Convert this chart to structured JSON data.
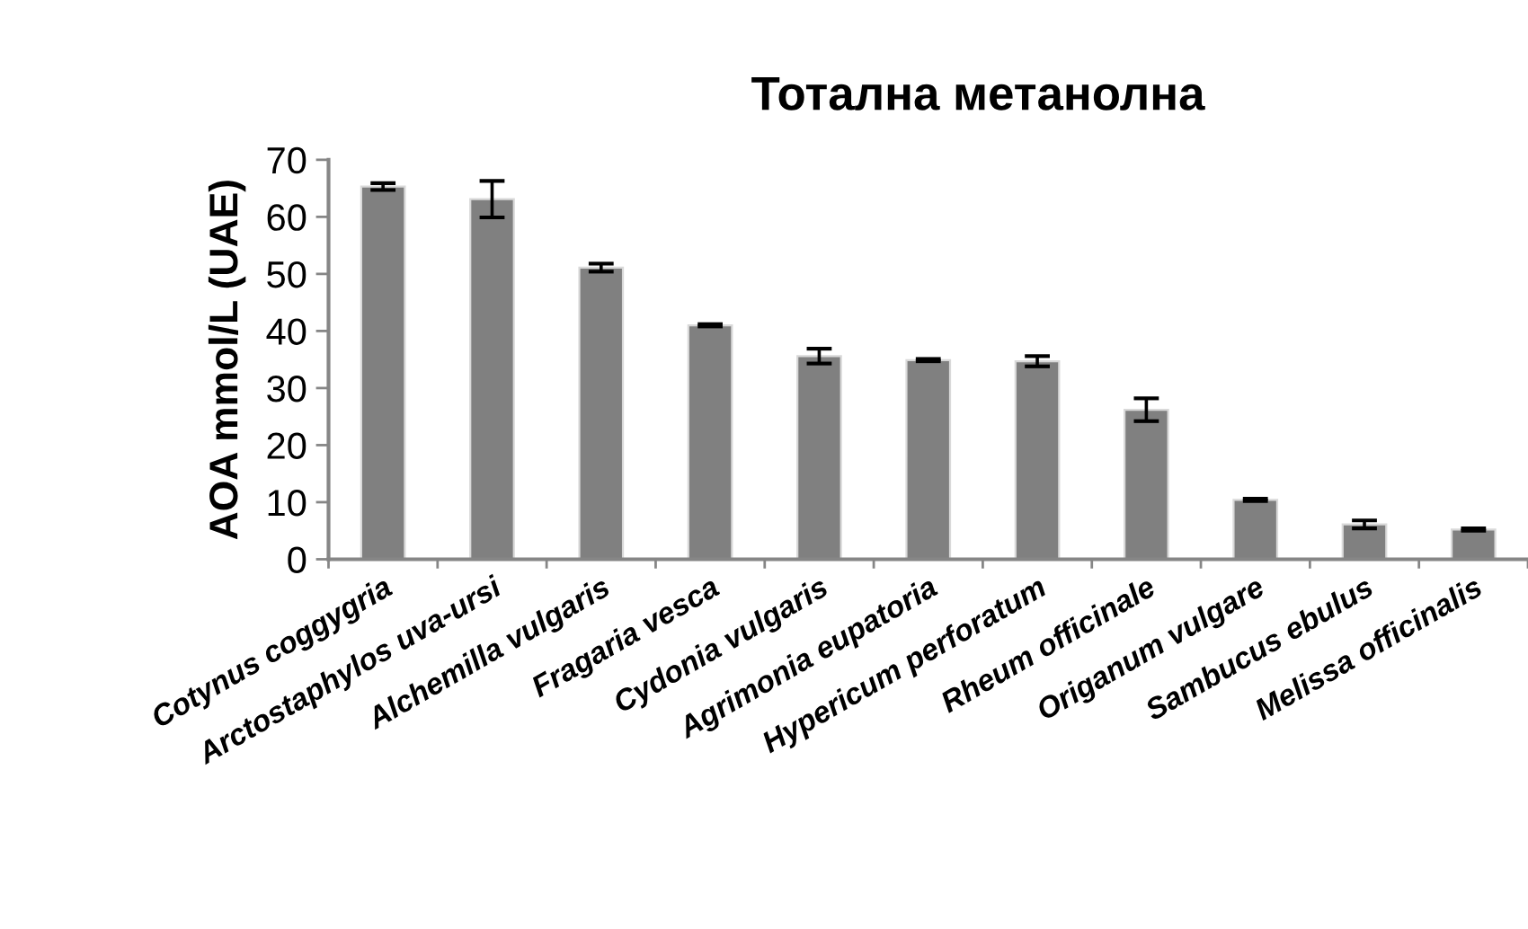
{
  "chart_data": {
    "type": "bar",
    "title": "Тотална метанолна",
    "ylabel": "AOA mmol/L (UAE)",
    "categories": [
      "Cotynus coggygria",
      "Arctostaphylos uva-ursi",
      "Alchemilla vulgaris",
      "Fragaria vesca",
      "Cydonia vulgaris",
      "Agrimonia eupatoria",
      "Hypericum perforatum",
      "Rheum officinale",
      "Origanum vulgare",
      "Sambucus ebulus",
      "Melissa officinalis"
    ],
    "values": [
      65.3,
      63.1,
      51.1,
      41.0,
      35.6,
      34.9,
      34.7,
      26.2,
      10.4,
      6.1,
      5.2
    ],
    "errors": [
      0.6,
      3.2,
      0.7,
      0.2,
      1.3,
      0.2,
      0.9,
      2.0,
      0.2,
      0.7,
      0.2
    ],
    "color": "#808080",
    "ylim": [
      0,
      70
    ],
    "yticks": [
      0,
      10,
      20,
      30,
      40,
      50,
      60,
      70
    ],
    "grid": false,
    "legend": false
  }
}
